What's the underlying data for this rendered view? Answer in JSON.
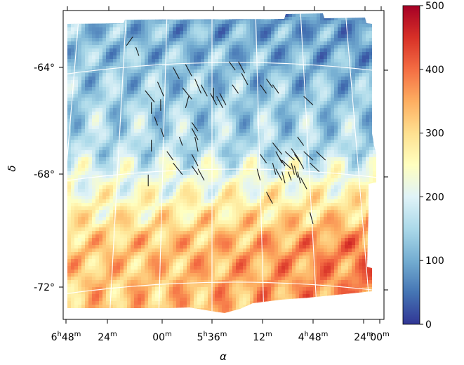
{
  "chart_data": {
    "type": "heatmap",
    "projection": "celestial sky map with curved RA/Dec grid",
    "title": "",
    "xlabel": "α",
    "ylabel": "δ",
    "x_ticks": [
      {
        "h": "6",
        "hs": "h",
        "m": "48",
        "ms": "m"
      },
      {
        "h": "",
        "hs": "",
        "m": "24",
        "ms": "m"
      },
      {
        "h": "",
        "hs": "",
        "m": "00",
        "ms": "m"
      },
      {
        "h": "5",
        "hs": "h",
        "m": "36",
        "ms": "m"
      },
      {
        "h": "",
        "hs": "",
        "m": "12",
        "ms": "m"
      },
      {
        "h": "4",
        "hs": "h",
        "m": "48",
        "ms": "m"
      },
      {
        "h": "",
        "hs": "",
        "m": "24",
        "ms": "m"
      },
      {
        "h": "",
        "hs": "",
        "m": "00",
        "ms": "m"
      }
    ],
    "y_ticks": [
      "-64°",
      "-68°",
      "-72°"
    ],
    "ra_range_hours": [
      6.8,
      4.0
    ],
    "dec_range_deg": [
      -73.2,
      -62.5
    ],
    "grid": true,
    "grid_color": "#ffffff",
    "colormap": "RdYlBu_r",
    "colormap_stops": [
      "#313695",
      "#4575b4",
      "#74add1",
      "#abd9e9",
      "#e0f3f8",
      "#ffffbf",
      "#fee090",
      "#fdae61",
      "#f46d43",
      "#d73027",
      "#a50026"
    ],
    "colorbar": {
      "min": 0,
      "max": 500,
      "ticks": [
        "0",
        "100",
        "200",
        "300",
        "400",
        "500"
      ]
    },
    "value_regions": [
      {
        "region": "north-east (upper right)",
        "approx_value": 120
      },
      {
        "region": "central band",
        "approx_value": 180
      },
      {
        "region": "south-west (lower left)",
        "approx_value": 320
      },
      {
        "region": "south-east (lower right)",
        "approx_value": 390
      }
    ],
    "polarization_vectors": [
      [
        0.21,
        0.045,
        0.19,
        0.075
      ],
      [
        0.22,
        0.08,
        0.23,
        0.11
      ],
      [
        0.34,
        0.15,
        0.36,
        0.19
      ],
      [
        0.38,
        0.14,
        0.4,
        0.18
      ],
      [
        0.25,
        0.23,
        0.28,
        0.27
      ],
      [
        0.29,
        0.2,
        0.31,
        0.25
      ],
      [
        0.37,
        0.22,
        0.4,
        0.26
      ],
      [
        0.41,
        0.19,
        0.43,
        0.24
      ],
      [
        0.43,
        0.21,
        0.45,
        0.25
      ],
      [
        0.46,
        0.24,
        0.48,
        0.28
      ],
      [
        0.47,
        0.22,
        0.47,
        0.26
      ],
      [
        0.48,
        0.25,
        0.5,
        0.29
      ],
      [
        0.49,
        0.24,
        0.51,
        0.28
      ],
      [
        0.53,
        0.21,
        0.55,
        0.24
      ],
      [
        0.52,
        0.13,
        0.54,
        0.16
      ],
      [
        0.55,
        0.13,
        0.57,
        0.17
      ],
      [
        0.56,
        0.17,
        0.58,
        0.21
      ],
      [
        0.62,
        0.21,
        0.64,
        0.24
      ],
      [
        0.64,
        0.19,
        0.66,
        0.22
      ],
      [
        0.66,
        0.21,
        0.68,
        0.24
      ],
      [
        0.76,
        0.25,
        0.79,
        0.28
      ],
      [
        0.39,
        0.25,
        0.38,
        0.29
      ],
      [
        0.3,
        0.26,
        0.3,
        0.3
      ],
      [
        0.27,
        0.27,
        0.27,
        0.31
      ],
      [
        0.28,
        0.32,
        0.29,
        0.35
      ],
      [
        0.3,
        0.36,
        0.31,
        0.39
      ],
      [
        0.4,
        0.34,
        0.42,
        0.37
      ],
      [
        0.4,
        0.36,
        0.42,
        0.4
      ],
      [
        0.41,
        0.39,
        0.42,
        0.44
      ],
      [
        0.36,
        0.39,
        0.37,
        0.42
      ],
      [
        0.27,
        0.4,
        0.27,
        0.44
      ],
      [
        0.32,
        0.44,
        0.34,
        0.47
      ],
      [
        0.34,
        0.48,
        0.37,
        0.52
      ],
      [
        0.4,
        0.45,
        0.42,
        0.49
      ],
      [
        0.4,
        0.49,
        0.42,
        0.52
      ],
      [
        0.42,
        0.5,
        0.44,
        0.54
      ],
      [
        0.26,
        0.52,
        0.26,
        0.56
      ],
      [
        0.66,
        0.41,
        0.69,
        0.45
      ],
      [
        0.67,
        0.44,
        0.69,
        0.48
      ],
      [
        0.68,
        0.46,
        0.7,
        0.49
      ],
      [
        0.69,
        0.47,
        0.72,
        0.5
      ],
      [
        0.7,
        0.44,
        0.73,
        0.47
      ],
      [
        0.72,
        0.43,
        0.74,
        0.46
      ],
      [
        0.73,
        0.45,
        0.75,
        0.48
      ],
      [
        0.74,
        0.46,
        0.76,
        0.5
      ],
      [
        0.76,
        0.44,
        0.79,
        0.47
      ],
      [
        0.78,
        0.48,
        0.81,
        0.51
      ],
      [
        0.8,
        0.44,
        0.83,
        0.47
      ],
      [
        0.66,
        0.48,
        0.67,
        0.52
      ],
      [
        0.67,
        0.5,
        0.69,
        0.54
      ],
      [
        0.69,
        0.51,
        0.7,
        0.55
      ],
      [
        0.73,
        0.49,
        0.74,
        0.53
      ],
      [
        0.74,
        0.51,
        0.75,
        0.55
      ],
      [
        0.75,
        0.53,
        0.77,
        0.57
      ],
      [
        0.64,
        0.58,
        0.66,
        0.62
      ],
      [
        0.71,
        0.51,
        0.72,
        0.54
      ],
      [
        0.72,
        0.48,
        0.73,
        0.52
      ],
      [
        0.74,
        0.39,
        0.76,
        0.42
      ],
      [
        0.62,
        0.45,
        0.64,
        0.48
      ],
      [
        0.61,
        0.5,
        0.62,
        0.54
      ],
      [
        0.78,
        0.65,
        0.79,
        0.69
      ]
    ]
  }
}
